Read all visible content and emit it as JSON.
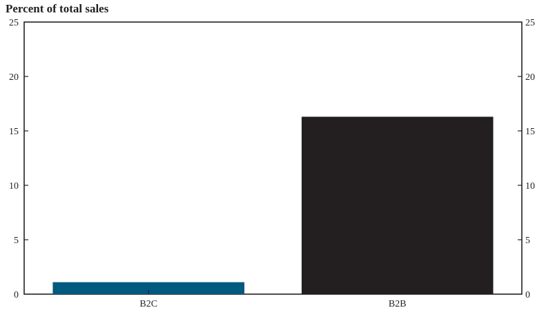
{
  "chart_data": {
    "type": "bar",
    "title": "Percent of total sales",
    "categories": [
      "B2C",
      "B2B"
    ],
    "values": [
      1.1,
      16.3
    ],
    "bar_colors": [
      "#005a7f",
      "#231f20"
    ],
    "ylim": [
      0,
      25
    ],
    "yticks": [
      0,
      5,
      10,
      15,
      20,
      25
    ],
    "y_axis_sides": "left and right",
    "grid": false,
    "legend": "none"
  }
}
